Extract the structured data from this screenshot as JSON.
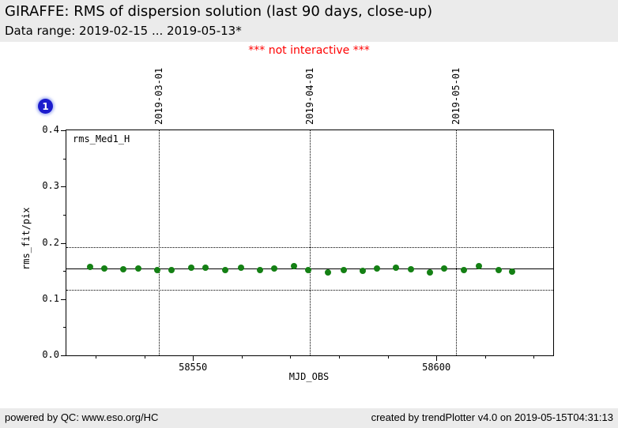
{
  "header": {
    "title": "GIRAFFE: RMS of dispersion solution (last 90 days, close-up)",
    "subtitle": "Data range: 2019-02-15 ... 2019-05-13*"
  },
  "notice": "*** not interactive ***",
  "badge": {
    "label": "1",
    "color": "#1c1ccd"
  },
  "footer": {
    "left": "powered by QC: www.eso.org/HC",
    "right": "created by trendPlotter v4.0 on 2019-05-15T04:31:13"
  },
  "colors": {
    "band_bg": "#ebebeb",
    "notice_red": "#ff0000",
    "marker_green": "#148014",
    "badge_blue": "#1c1ccd",
    "axis_black": "#000000"
  },
  "chart_data": {
    "type": "scatter",
    "legend": "rms_Med1_H",
    "xlabel": "MJD_OBS",
    "ylabel": "rms_fit/pix",
    "xlim": [
      58524,
      58624
    ],
    "ylim": [
      0.0,
      0.4
    ],
    "grid": false,
    "marker_color": "#148014",
    "x_ticks_major": [
      {
        "value": 58550,
        "label": "58550"
      },
      {
        "value": 58600,
        "label": "58600"
      }
    ],
    "x_ticks_minor": [
      58530,
      58540,
      58560,
      58570,
      58580,
      58590,
      58610,
      58620
    ],
    "y_ticks_major": [
      {
        "value": 0.0,
        "label": "0.0"
      },
      {
        "value": 0.1,
        "label": "0.1"
      },
      {
        "value": 0.2,
        "label": "0.2"
      },
      {
        "value": 0.3,
        "label": "0.3"
      },
      {
        "value": 0.4,
        "label": "0.4"
      }
    ],
    "y_ticks_minor": [
      0.05,
      0.15,
      0.25,
      0.35
    ],
    "date_lines": [
      {
        "mjd": 58543,
        "label": "2019-03-01"
      },
      {
        "mjd": 58574,
        "label": "2019-04-01"
      },
      {
        "mjd": 58604,
        "label": "2019-05-01"
      }
    ],
    "avg_line": 0.1545,
    "thresholds": [
      0.192,
      0.117
    ],
    "points": [
      [
        58528.8,
        0.157
      ],
      [
        58531.8,
        0.155
      ],
      [
        58535.7,
        0.153
      ],
      [
        58538.7,
        0.155
      ],
      [
        58542.6,
        0.152
      ],
      [
        58545.6,
        0.151
      ],
      [
        58549.7,
        0.156
      ],
      [
        58552.5,
        0.156
      ],
      [
        58556.7,
        0.151
      ],
      [
        58559.8,
        0.156
      ],
      [
        58563.7,
        0.152
      ],
      [
        58566.7,
        0.154
      ],
      [
        58570.7,
        0.158
      ],
      [
        58573.7,
        0.152
      ],
      [
        58577.8,
        0.147
      ],
      [
        58581.0,
        0.151
      ],
      [
        58584.8,
        0.15
      ],
      [
        58587.8,
        0.154
      ],
      [
        58591.7,
        0.156
      ],
      [
        58594.8,
        0.153
      ],
      [
        58598.7,
        0.147
      ],
      [
        58601.6,
        0.155
      ],
      [
        58605.6,
        0.152
      ],
      [
        58608.7,
        0.158
      ],
      [
        58612.8,
        0.151
      ],
      [
        58615.6,
        0.149
      ]
    ]
  }
}
